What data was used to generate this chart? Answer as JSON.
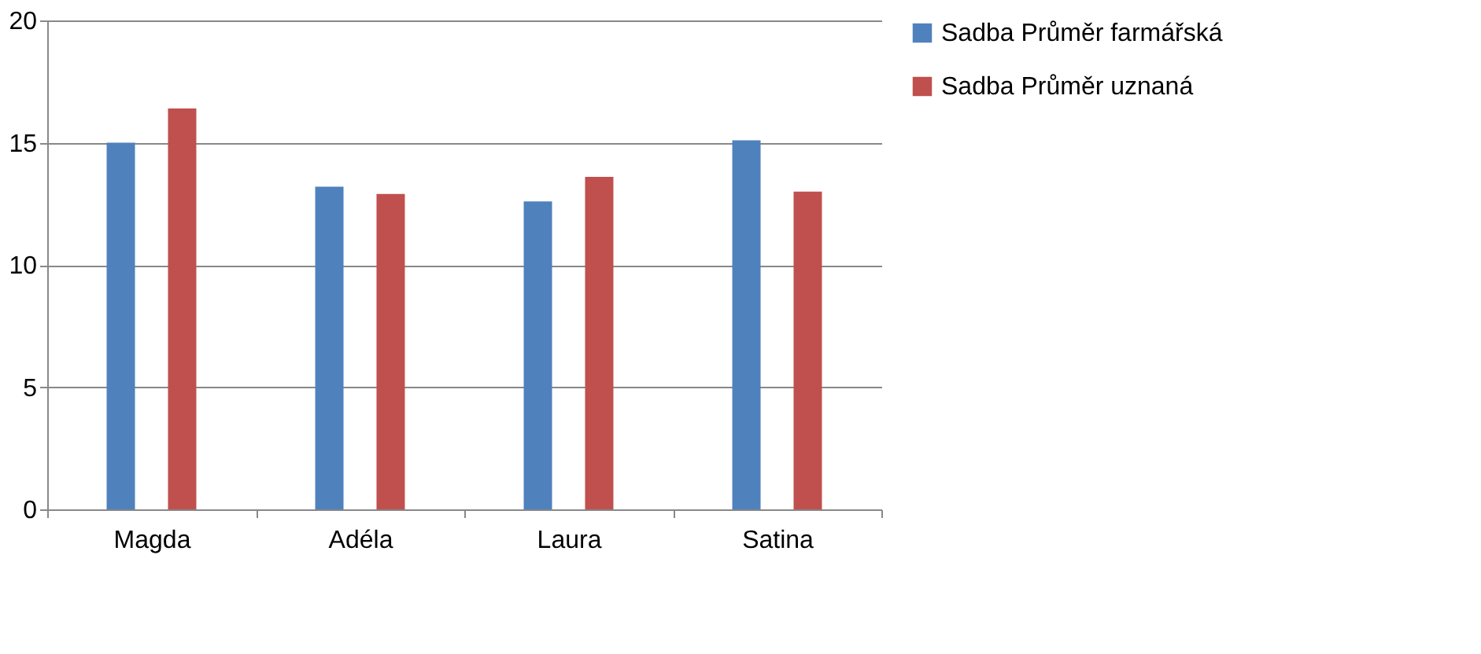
{
  "chart_data": {
    "type": "bar",
    "categories": [
      "Magda",
      "Adéla",
      "Laura",
      "Satina"
    ],
    "series": [
      {
        "name": "Sadba Průměr farmářská",
        "color": "#4f81bd",
        "values": [
          15.0,
          13.2,
          12.6,
          15.1
        ]
      },
      {
        "name": "Sadba Průměr uznaná",
        "color": "#c0504d",
        "values": [
          16.4,
          12.9,
          13.6,
          13.0
        ]
      }
    ],
    "ylim": [
      0,
      20
    ],
    "yticks": [
      0,
      5,
      10,
      15,
      20
    ],
    "grid": "y",
    "legend": "right"
  }
}
